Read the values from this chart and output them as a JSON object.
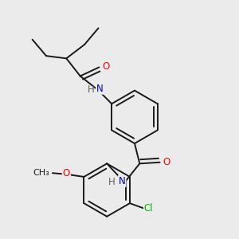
{
  "background_color": "#ebebeb",
  "atom_colors": {
    "O": "#ff0000",
    "N": "#0000cc",
    "Cl": "#00bb00",
    "C": "#1a1a1a",
    "H": "#606060"
  },
  "bond_color": "#1a1a1a",
  "bond_width": 1.4,
  "font_size_atoms": 8.5,
  "figsize": [
    3.0,
    3.0
  ],
  "dpi": 100
}
